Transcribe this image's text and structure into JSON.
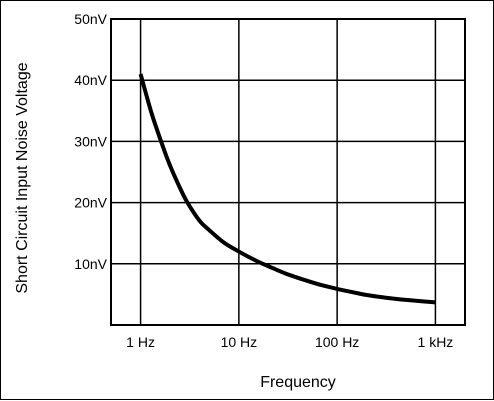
{
  "chart_data": {
    "type": "line",
    "title": "",
    "xlabel": "Frequency",
    "ylabel": "Short Circuit Input Noise Voltage",
    "x_scale": "log",
    "x_ticks": [
      1,
      10,
      100,
      1000
    ],
    "x_tick_labels": [
      "1 Hz",
      "10 Hz",
      "100 Hz",
      "1 kHz"
    ],
    "xlim": [
      0.5,
      2000
    ],
    "y_ticks": [
      10,
      20,
      30,
      40,
      50
    ],
    "y_tick_labels": [
      "10nV",
      "20nV",
      "30nV",
      "40nV",
      "50nV"
    ],
    "ylim": [
      0,
      50
    ],
    "grid": true,
    "colors": {
      "line": "#000000",
      "grid": "#000000",
      "border": "#000000"
    },
    "series": [
      {
        "x": [
          1,
          1.3,
          1.7,
          2,
          2.5,
          3,
          4,
          5,
          7,
          10,
          15,
          20,
          30,
          50,
          70,
          100,
          150,
          200,
          300,
          500,
          700,
          1000
        ],
        "y": [
          41,
          34.5,
          29,
          26,
          22.5,
          20,
          17,
          15.5,
          13.5,
          12,
          10.5,
          9.6,
          8.4,
          7.2,
          6.5,
          5.9,
          5.3,
          4.9,
          4.5,
          4.1,
          3.9,
          3.7
        ]
      }
    ]
  }
}
